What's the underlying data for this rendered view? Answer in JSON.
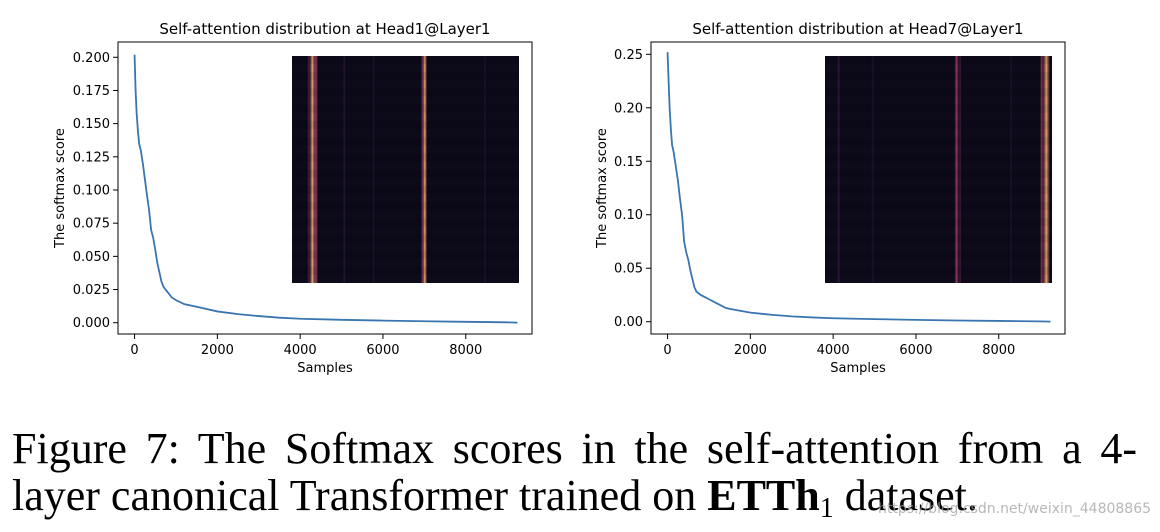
{
  "chart_data": [
    {
      "type": "line",
      "title": "Self-attention distribution at Head1@Layer1",
      "xlabel": "Samples",
      "ylabel": "The softmax score",
      "xlim": [
        -400,
        9600
      ],
      "ylim": [
        -0.0085,
        0.2115
      ],
      "xticks": [
        0,
        2000,
        4000,
        6000,
        8000
      ],
      "xtick_labels": [
        "0",
        "2000",
        "4000",
        "6000",
        "8000"
      ],
      "yticks": [
        0,
        0.025,
        0.05,
        0.075,
        0.1,
        0.125,
        0.15,
        0.175,
        0.2
      ],
      "ytick_labels": [
        "0.000",
        "0.025",
        "0.050",
        "0.075",
        "0.100",
        "0.125",
        "0.150",
        "0.175",
        "0.200"
      ],
      "grid": false,
      "line_color": "#3a75b0",
      "series": [
        {
          "x": [
            0,
            25,
            50,
            80,
            110,
            150,
            200,
            250,
            300,
            350,
            400,
            450,
            500,
            550,
            600,
            650,
            700,
            800,
            900,
            1000,
            1200,
            1500,
            2000,
            2500,
            3000,
            3500,
            4000,
            5000,
            6000,
            7000,
            8000,
            9000,
            9250
          ],
          "y": [
            0.202,
            0.175,
            0.158,
            0.145,
            0.135,
            0.13,
            0.12,
            0.108,
            0.096,
            0.085,
            0.07,
            0.064,
            0.055,
            0.045,
            0.038,
            0.031,
            0.027,
            0.023,
            0.019,
            0.017,
            0.014,
            0.012,
            0.0085,
            0.0065,
            0.005,
            0.0038,
            0.003,
            0.0022,
            0.0016,
            0.0011,
            0.0007,
            0.0003,
            0.0001
          ]
        }
      ],
      "inset_heatmap": {
        "bg": "#0d0a1a",
        "bands": [
          {
            "pos": 0.09,
            "width": 0.012,
            "color": "#f0b080",
            "alpha": 0.95
          },
          {
            "pos": 0.105,
            "width": 0.01,
            "color": "#c84870",
            "alpha": 0.8
          },
          {
            "pos": 0.075,
            "width": 0.008,
            "color": "#8a2a58",
            "alpha": 0.6
          },
          {
            "pos": 0.585,
            "width": 0.01,
            "color": "#f0a878",
            "alpha": 0.95
          },
          {
            "pos": 0.575,
            "width": 0.008,
            "color": "#b03c68",
            "alpha": 0.65
          },
          {
            "pos": 0.23,
            "width": 0.006,
            "color": "#3a2048",
            "alpha": 0.6
          },
          {
            "pos": 0.36,
            "width": 0.006,
            "color": "#2a1a40",
            "alpha": 0.55
          },
          {
            "pos": 0.85,
            "width": 0.006,
            "color": "#2a1a40",
            "alpha": 0.55
          }
        ]
      }
    },
    {
      "type": "line",
      "title": "Self-attention distribution at Head7@Layer1",
      "xlabel": "Samples",
      "ylabel": "The softmax score",
      "xlim": [
        -400,
        9600
      ],
      "ylim": [
        -0.0115,
        0.2615
      ],
      "xticks": [
        0,
        2000,
        4000,
        6000,
        8000
      ],
      "xtick_labels": [
        "0",
        "2000",
        "4000",
        "6000",
        "8000"
      ],
      "yticks": [
        0,
        0.05,
        0.1,
        0.15,
        0.2,
        0.25
      ],
      "ytick_labels": [
        "0.00",
        "0.05",
        "0.10",
        "0.15",
        "0.20",
        "0.25"
      ],
      "grid": false,
      "line_color": "#3a75b0",
      "series": [
        {
          "x": [
            0,
            25,
            50,
            80,
            110,
            150,
            200,
            250,
            300,
            350,
            400,
            450,
            500,
            550,
            600,
            650,
            700,
            800,
            900,
            1000,
            1200,
            1400,
            1500,
            2000,
            2500,
            3000,
            3500,
            4000,
            5000,
            6000,
            7000,
            8000,
            9000,
            9250
          ],
          "y": [
            0.252,
            0.225,
            0.2,
            0.18,
            0.165,
            0.158,
            0.145,
            0.132,
            0.115,
            0.1,
            0.075,
            0.065,
            0.058,
            0.048,
            0.04,
            0.032,
            0.028,
            0.025,
            0.023,
            0.021,
            0.017,
            0.013,
            0.012,
            0.0085,
            0.0065,
            0.005,
            0.004,
            0.0032,
            0.0024,
            0.0017,
            0.0011,
            0.0007,
            0.0003,
            0.0001
          ]
        }
      ],
      "inset_heatmap": {
        "bg": "#0d0a1a",
        "bands": [
          {
            "pos": 0.06,
            "width": 0.008,
            "color": "#3a2048",
            "alpha": 0.7
          },
          {
            "pos": 0.21,
            "width": 0.006,
            "color": "#2a1a40",
            "alpha": 0.6
          },
          {
            "pos": 0.58,
            "width": 0.01,
            "color": "#b04070",
            "alpha": 0.85
          },
          {
            "pos": 0.595,
            "width": 0.006,
            "color": "#6a2a58",
            "alpha": 0.6
          },
          {
            "pos": 0.82,
            "width": 0.006,
            "color": "#2a1a40",
            "alpha": 0.55
          },
          {
            "pos": 0.975,
            "width": 0.016,
            "color": "#f0a070",
            "alpha": 0.95
          },
          {
            "pos": 0.955,
            "width": 0.008,
            "color": "#c04868",
            "alpha": 0.7
          }
        ]
      }
    }
  ],
  "caption": {
    "prefix": "Figure 7: The Softmax scores in the self-attention from a 4-layer canonical Transformer trained on ",
    "dataset_bold": "ETTh",
    "dataset_sub": "1",
    "suffix": " dataset."
  },
  "watermark": "https://blog.csdn.net/weixin_44808865"
}
